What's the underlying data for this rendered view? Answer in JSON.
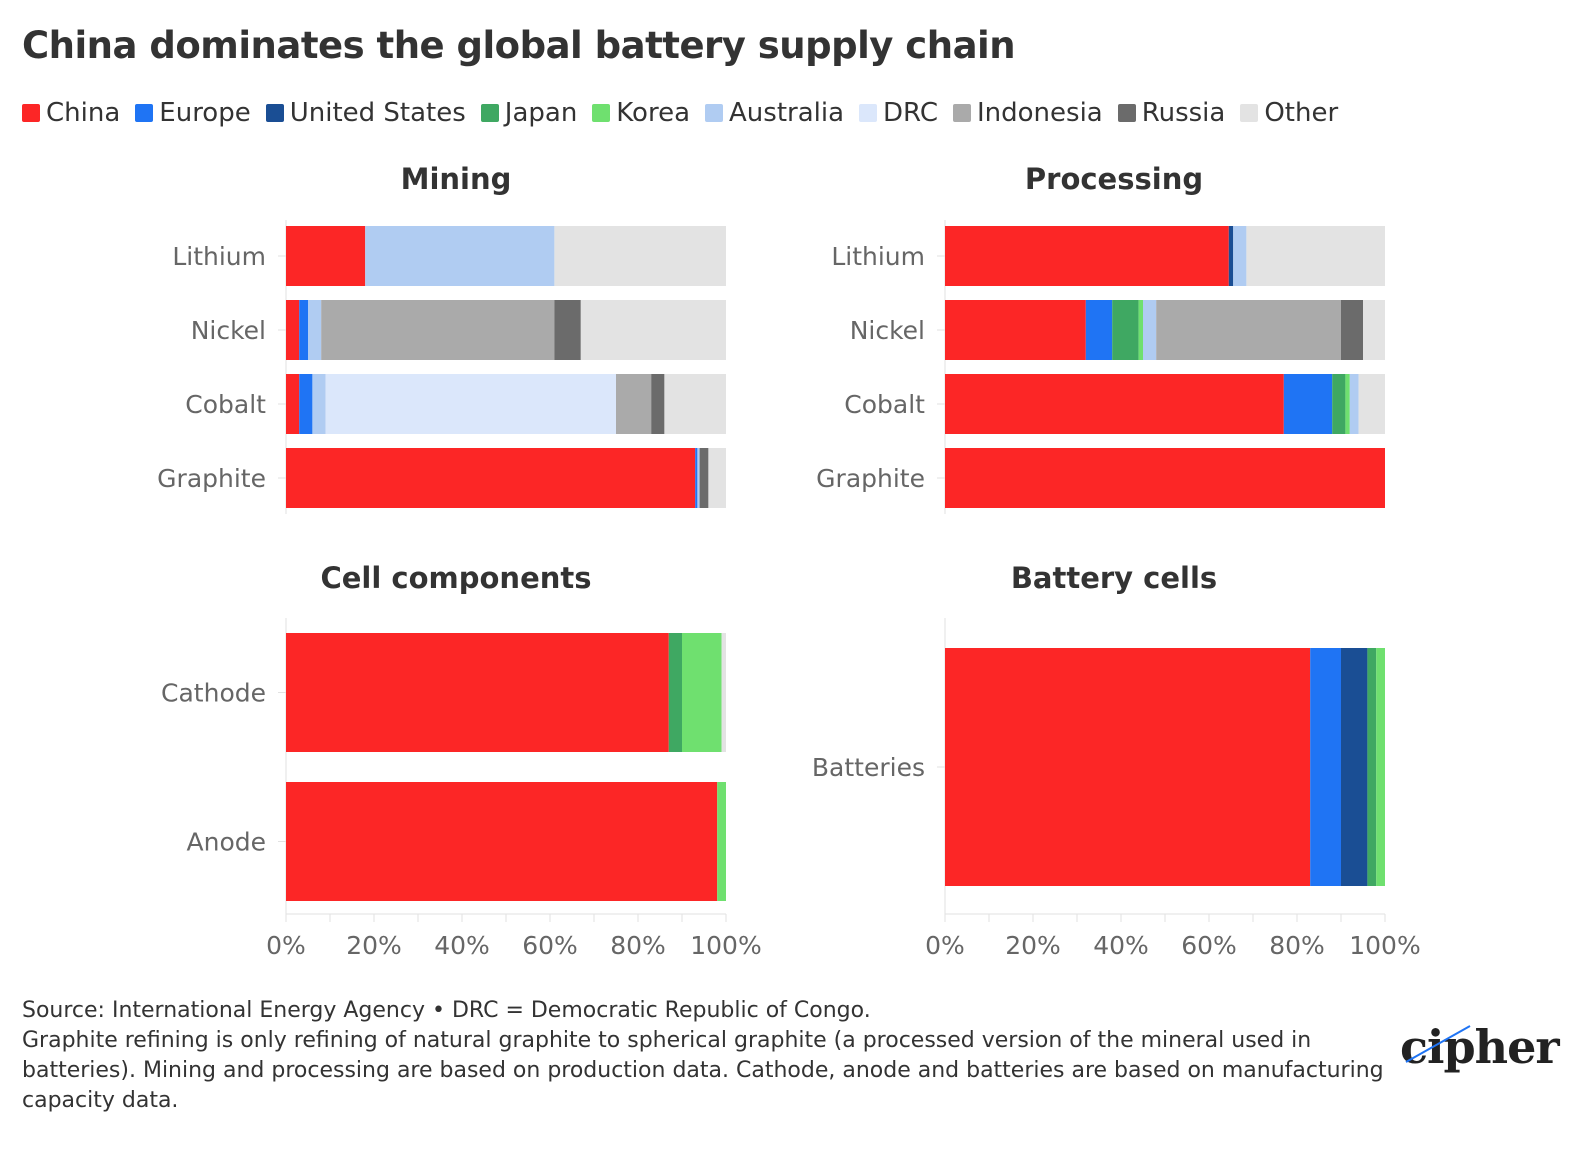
{
  "title": "China dominates the global battery supply chain",
  "colors": {
    "China": "#fc2626",
    "Europe": "#1f74f4",
    "United States": "#1a4e94",
    "Japan": "#3fa862",
    "Korea": "#6fe06f",
    "Australia": "#b0ccf2",
    "DRC": "#dbe7fb",
    "Indonesia": "#aaaaaa",
    "Russia": "#6b6b6b",
    "Other": "#e3e3e3"
  },
  "legend": [
    "China",
    "Europe",
    "United States",
    "Japan",
    "Korea",
    "Australia",
    "DRC",
    "Indonesia",
    "Russia",
    "Other"
  ],
  "chart_data": [
    {
      "type": "bar",
      "orientation": "horizontal",
      "stacked": true,
      "title": "Mining",
      "categories": [
        "Lithium",
        "Nickel",
        "Cobalt",
        "Graphite"
      ],
      "xlim": [
        0,
        100
      ],
      "xticks": [
        "0%",
        "20%",
        "40%",
        "60%",
        "80%",
        "100%"
      ],
      "show_axis": false,
      "series": [
        {
          "name": "China",
          "values": [
            18,
            3,
            3,
            93
          ]
        },
        {
          "name": "Europe",
          "values": [
            0,
            2,
            3,
            0.5
          ]
        },
        {
          "name": "United States",
          "values": [
            0,
            0,
            0,
            0
          ]
        },
        {
          "name": "Japan",
          "values": [
            0,
            0,
            0,
            0
          ]
        },
        {
          "name": "Korea",
          "values": [
            0,
            0,
            0,
            0
          ]
        },
        {
          "name": "Australia",
          "values": [
            43,
            3,
            3,
            0.5
          ]
        },
        {
          "name": "DRC",
          "values": [
            0,
            0,
            66,
            0
          ]
        },
        {
          "name": "Indonesia",
          "values": [
            0,
            53,
            8,
            0
          ]
        },
        {
          "name": "Russia",
          "values": [
            0,
            6,
            3,
            2
          ]
        },
        {
          "name": "Other",
          "values": [
            39,
            33,
            14,
            4
          ]
        }
      ]
    },
    {
      "type": "bar",
      "orientation": "horizontal",
      "stacked": true,
      "title": "Processing",
      "categories": [
        "Lithium",
        "Nickel",
        "Cobalt",
        "Graphite"
      ],
      "xlim": [
        0,
        100
      ],
      "xticks": [
        "0%",
        "20%",
        "40%",
        "60%",
        "80%",
        "100%"
      ],
      "show_axis": false,
      "series": [
        {
          "name": "China",
          "values": [
            64.5,
            32,
            77,
            100
          ]
        },
        {
          "name": "Europe",
          "values": [
            0,
            6,
            11,
            0
          ]
        },
        {
          "name": "United States",
          "values": [
            1,
            0,
            0,
            0
          ]
        },
        {
          "name": "Japan",
          "values": [
            0,
            6,
            3,
            0
          ]
        },
        {
          "name": "Korea",
          "values": [
            0,
            1,
            1,
            0
          ]
        },
        {
          "name": "Australia",
          "values": [
            3,
            3,
            2,
            0
          ]
        },
        {
          "name": "DRC",
          "values": [
            0,
            0,
            0,
            0
          ]
        },
        {
          "name": "Indonesia",
          "values": [
            0,
            42,
            0,
            0
          ]
        },
        {
          "name": "Russia",
          "values": [
            0,
            5,
            0,
            0
          ]
        },
        {
          "name": "Other",
          "values": [
            31.5,
            5,
            6,
            0
          ]
        }
      ]
    },
    {
      "type": "bar",
      "orientation": "horizontal",
      "stacked": true,
      "title": "Cell components",
      "categories": [
        "Cathode",
        "Anode"
      ],
      "xlim": [
        0,
        100
      ],
      "xticks": [
        "0%",
        "20%",
        "40%",
        "60%",
        "80%",
        "100%"
      ],
      "show_axis": true,
      "series": [
        {
          "name": "China",
          "values": [
            87,
            98
          ]
        },
        {
          "name": "Europe",
          "values": [
            0,
            0
          ]
        },
        {
          "name": "United States",
          "values": [
            0,
            0
          ]
        },
        {
          "name": "Japan",
          "values": [
            3,
            0
          ]
        },
        {
          "name": "Korea",
          "values": [
            9,
            2
          ]
        },
        {
          "name": "Australia",
          "values": [
            0,
            0
          ]
        },
        {
          "name": "DRC",
          "values": [
            0,
            0
          ]
        },
        {
          "name": "Indonesia",
          "values": [
            0,
            0
          ]
        },
        {
          "name": "Russia",
          "values": [
            0,
            0
          ]
        },
        {
          "name": "Other",
          "values": [
            1,
            0
          ]
        }
      ]
    },
    {
      "type": "bar",
      "orientation": "horizontal",
      "stacked": true,
      "title": "Battery cells",
      "categories": [
        "Batteries"
      ],
      "xlim": [
        0,
        100
      ],
      "xticks": [
        "0%",
        "20%",
        "40%",
        "60%",
        "80%",
        "100%"
      ],
      "show_axis": true,
      "series": [
        {
          "name": "China",
          "values": [
            83
          ]
        },
        {
          "name": "Europe",
          "values": [
            7
          ]
        },
        {
          "name": "United States",
          "values": [
            6
          ]
        },
        {
          "name": "Japan",
          "values": [
            2
          ]
        },
        {
          "name": "Korea",
          "values": [
            2
          ]
        },
        {
          "name": "Australia",
          "values": [
            0
          ]
        },
        {
          "name": "DRC",
          "values": [
            0
          ]
        },
        {
          "name": "Indonesia",
          "values": [
            0
          ]
        },
        {
          "name": "Russia",
          "values": [
            0
          ]
        },
        {
          "name": "Other",
          "values": [
            0
          ]
        }
      ]
    }
  ],
  "footer": {
    "line1": "Source: International Energy Agency • DRC = Democratic Republic of Congo.",
    "line2": "Graphite refining is only refining of natural graphite to spherical graphite (a processed version of the mineral used in batteries). Mining and processing are based on production data. Cathode, anode and batteries are based on manufacturing capacity data."
  },
  "logo": "cipher"
}
